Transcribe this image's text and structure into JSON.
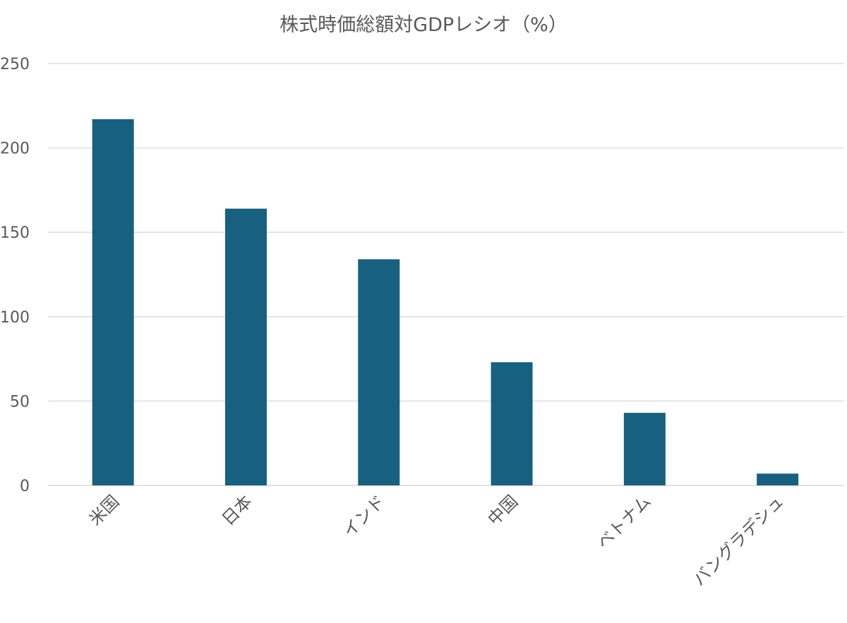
{
  "chart_data": {
    "type": "bar",
    "title": "株式時価総額対GDPレシオ（%）",
    "xlabel": "",
    "ylabel": "",
    "categories": [
      "米国",
      "日本",
      "インド",
      "中国",
      "ベトナム",
      "バングラデシュ"
    ],
    "values": [
      217,
      164,
      134,
      73,
      43,
      7
    ],
    "ylim": [
      0,
      250
    ],
    "yticks": [
      0,
      50,
      100,
      150,
      200,
      250
    ],
    "grid": true,
    "legend": "none",
    "bar_color": "#17607f",
    "x_tick_rotation": -45
  }
}
